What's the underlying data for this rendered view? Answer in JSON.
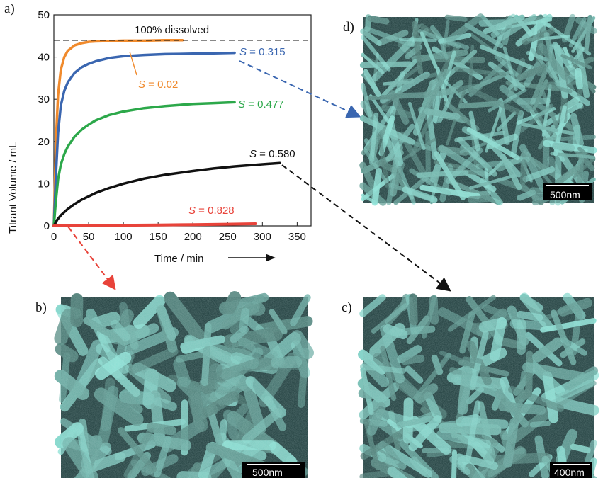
{
  "panels": {
    "a": "a)",
    "b": "b)",
    "c": "c)",
    "d": "d)"
  },
  "chart_data": {
    "type": "line",
    "xlabel": "Time / min",
    "ylabel": "Titrant Volume / mL",
    "xlim": [
      0,
      370
    ],
    "ylim": [
      0,
      50
    ],
    "xticks": [
      0,
      50,
      100,
      150,
      200,
      250,
      300,
      350
    ],
    "yticks": [
      0,
      10,
      20,
      30,
      40,
      50
    ],
    "reference_line": {
      "y": 44,
      "label": "100% dissolved"
    },
    "series": [
      {
        "name": "S = 0.02",
        "color": "#f08a2c",
        "x": [
          0,
          3,
          6,
          10,
          15,
          20,
          30,
          40,
          50,
          60,
          80,
          100,
          130,
          160,
          185
        ],
        "y": [
          0,
          20,
          31,
          37,
          40,
          41.5,
          42.8,
          43.3,
          43.6,
          43.7,
          43.8,
          43.9,
          43.9,
          44,
          44
        ]
      },
      {
        "name": "S = 0.315",
        "color": "#3a66b0",
        "x": [
          0,
          3,
          6,
          10,
          15,
          20,
          30,
          40,
          50,
          60,
          80,
          100,
          130,
          160,
          200,
          230,
          260
        ],
        "y": [
          0,
          12,
          22,
          28.5,
          32,
          34,
          36.3,
          37.6,
          38.4,
          39,
          39.8,
          40.2,
          40.5,
          40.7,
          40.8,
          40.9,
          41
        ]
      },
      {
        "name": "S = 0.477",
        "color": "#2ca84a",
        "x": [
          0,
          3,
          6,
          10,
          15,
          20,
          30,
          40,
          50,
          60,
          80,
          100,
          130,
          160,
          200,
          230,
          260
        ],
        "y": [
          0,
          6,
          11,
          14.5,
          17,
          18.8,
          21.2,
          22.8,
          24,
          25,
          26.3,
          27.1,
          27.9,
          28.4,
          28.9,
          29.1,
          29.3
        ]
      },
      {
        "name": "S = 0.580",
        "color": "#111111",
        "x": [
          0,
          5,
          10,
          20,
          30,
          40,
          50,
          60,
          80,
          100,
          130,
          160,
          200,
          230,
          260,
          300,
          325
        ],
        "y": [
          0,
          1.5,
          2.5,
          4,
          5.2,
          6.2,
          7,
          7.8,
          9,
          10,
          11.2,
          12.1,
          13,
          13.6,
          14.1,
          14.6,
          14.9
        ]
      },
      {
        "name": "S = 0.828",
        "color": "#e8433a",
        "x": [
          0,
          20,
          60,
          100,
          150,
          200,
          250,
          290
        ],
        "y": [
          0,
          0.05,
          0.1,
          0.15,
          0.2,
          0.3,
          0.4,
          0.5
        ]
      }
    ],
    "labels": [
      {
        "italic": "S",
        "value": " = 0.315"
      },
      {
        "italic": "S",
        "value": " = 0.02"
      },
      {
        "italic": "S",
        "value": " = 0.477"
      },
      {
        "italic": "S",
        "value": " = 0.580"
      },
      {
        "italic": "S",
        "value": " = 0.828"
      }
    ]
  },
  "sem_images": {
    "b": {
      "scale": "500nm"
    },
    "c": {
      "scale": "400nm"
    },
    "d": {
      "scale": "500nm"
    }
  },
  "colors": {
    "sem_base": "#1d3a3a",
    "sem_light": "#9fc9c6",
    "arrow_red": "#e8433a",
    "arrow_blue": "#3a66b0",
    "arrow_black": "#111111"
  }
}
